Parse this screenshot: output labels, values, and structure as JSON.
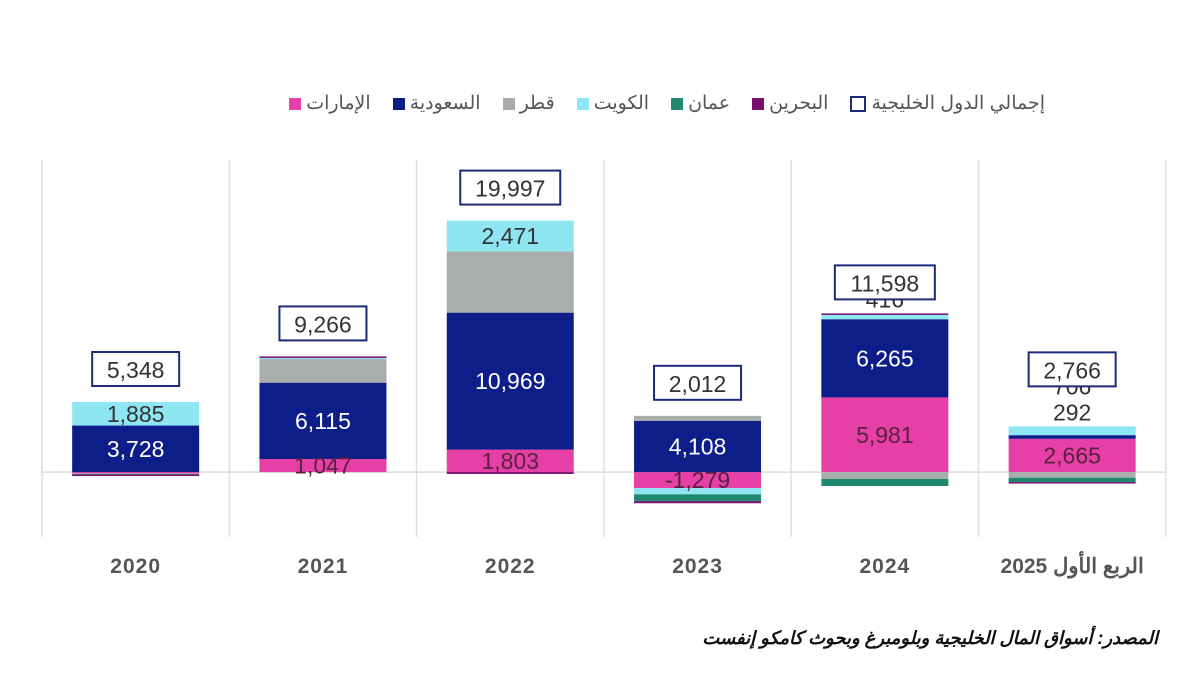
{
  "chart_data": {
    "type": "bar",
    "stacked": true,
    "categories": [
      "2020",
      "2021",
      "2022",
      "2023",
      "2024",
      "الربع الأول 2025"
    ],
    "ylim": [
      -5200,
      25000
    ],
    "grid": "vertical",
    "legend_position": "top",
    "legend_total": "إجمالي الدول الخليجية",
    "series": [
      {
        "name": "الإمارات",
        "color": "#e640a6",
        "label_color": "#5a2040",
        "values": [
          -100,
          1047,
          1803,
          -1279,
          5981,
          2665
        ],
        "labels": [
          null,
          "1,047",
          "1,803",
          "-1,279",
          "5,981",
          "2,665"
        ]
      },
      {
        "name": "السعودية",
        "color": "#0e1e88",
        "label_color": "#ffffff",
        "values": [
          3728,
          6115,
          10969,
          4108,
          6265,
          292
        ],
        "labels": [
          "3,728",
          "6,115",
          "10,969",
          "4,108",
          "6,265",
          "292"
        ]
      },
      {
        "name": "قطر",
        "color": "#a8aeac",
        "label_color": "#333333",
        "values": [
          -60,
          1950,
          4904,
          400,
          -550,
          -450
        ],
        "labels": [
          null,
          null,
          null,
          null,
          null,
          null
        ]
      },
      {
        "name": "الكويت",
        "color": "#8ee6f2",
        "label_color": "#333333",
        "values": [
          1885,
          54,
          2471,
          -500,
          416,
          706
        ],
        "labels": [
          "1,885",
          null,
          "2,471",
          null,
          "416",
          "706"
        ]
      },
      {
        "name": "عمان",
        "color": "#1f8a70",
        "label_color": "#ffffff",
        "values": [
          -40,
          0,
          0,
          -550,
          -564,
          -350
        ],
        "labels": [
          null,
          null,
          null,
          null,
          null,
          null
        ]
      },
      {
        "name": "البحرين",
        "color": "#7a106e",
        "label_color": "#ffffff",
        "values": [
          -65,
          100,
          -150,
          -167,
          50,
          -97
        ],
        "labels": [
          null,
          null,
          null,
          null,
          null,
          null
        ]
      }
    ],
    "totals": [
      5348,
      9266,
      19997,
      2012,
      11598,
      2766
    ],
    "total_labels": [
      "5,348",
      "9,266",
      "19,997",
      "2,012",
      "11,598",
      "2,766"
    ]
  },
  "source": "المصدر: أسواق المال الخليجية وبلومبرغ وبحوث كامكو إنفست"
}
